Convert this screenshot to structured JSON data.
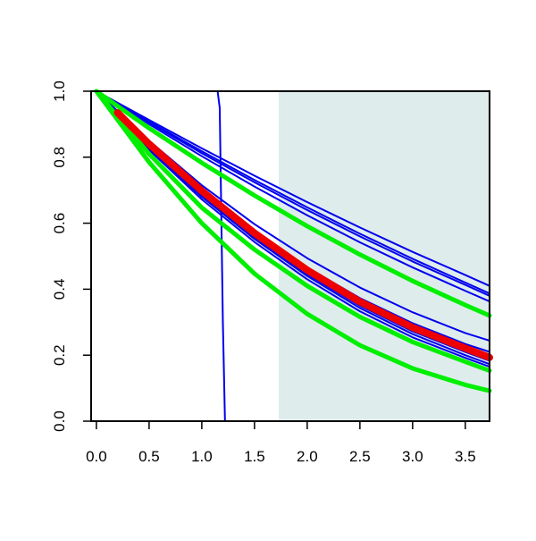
{
  "chart_data": {
    "type": "line",
    "title": "",
    "xlabel": "",
    "ylabel": "",
    "xlim": [
      -0.05,
      3.73
    ],
    "ylim": [
      0.0,
      1.0
    ],
    "x_ticks": [
      "0.0",
      "0.5",
      "1.0",
      "1.5",
      "2.0",
      "2.5",
      "3.0",
      "3.5"
    ],
    "y_ticks": [
      "0.0",
      "0.2",
      "0.4",
      "0.6",
      "0.8",
      "1.0"
    ],
    "grid": false,
    "legend": "none",
    "shaded_region": {
      "x_from": 1.73,
      "x_to": 3.73,
      "color": "#dfecec"
    },
    "series": [
      {
        "color": "#0000ee",
        "width": "thin",
        "x": [
          0,
          1.15,
          1.17,
          1.2,
          1.22,
          3.73
        ],
        "y": [
          1.0,
          1.0,
          0.95,
          0.3,
          0.0,
          0.0
        ]
      },
      {
        "color": "#0000ee",
        "width": "thin",
        "x": [
          0,
          0.5,
          1.0,
          1.5,
          2.0,
          2.5,
          3.0,
          3.5,
          3.73
        ],
        "y": [
          1.0,
          0.913,
          0.827,
          0.744,
          0.664,
          0.587,
          0.513,
          0.443,
          0.41
        ]
      },
      {
        "color": "#0000ee",
        "width": "thin",
        "x": [
          0,
          0.5,
          1.0,
          1.5,
          2.0,
          2.5,
          3.0,
          3.5,
          3.73
        ],
        "y": [
          1.0,
          0.908,
          0.818,
          0.731,
          0.648,
          0.568,
          0.492,
          0.42,
          0.387
        ]
      },
      {
        "color": "#0000ee",
        "width": "thin",
        "x": [
          0,
          0.5,
          1.0,
          1.5,
          2.0,
          2.5,
          3.0,
          3.5,
          3.73
        ],
        "y": [
          1.0,
          0.905,
          0.812,
          0.724,
          0.64,
          0.56,
          0.484,
          0.413,
          0.38
        ]
      },
      {
        "color": "#0000ee",
        "width": "thin",
        "x": [
          0,
          0.5,
          1.0,
          1.5,
          2.0,
          2.5,
          3.0,
          3.5,
          3.73
        ],
        "y": [
          1.0,
          0.9,
          0.803,
          0.711,
          0.624,
          0.542,
          0.466,
          0.395,
          0.363
        ]
      },
      {
        "color": "#0000ee",
        "width": "thin",
        "x": [
          0,
          0.5,
          1.0,
          1.5,
          2.0,
          2.5,
          3.0,
          3.5,
          3.73
        ],
        "y": [
          1.0,
          0.85,
          0.715,
          0.597,
          0.494,
          0.405,
          0.33,
          0.267,
          0.244
        ]
      },
      {
        "color": "#0000ee",
        "width": "thin",
        "x": [
          0,
          0.5,
          1.0,
          1.5,
          2.0,
          2.5,
          3.0,
          3.5,
          3.73
        ],
        "y": [
          1.0,
          0.84,
          0.7,
          0.575,
          0.466,
          0.373,
          0.297,
          0.234,
          0.21
        ]
      },
      {
        "color": "#0000ee",
        "width": "thin",
        "x": [
          0,
          0.5,
          1.0,
          1.5,
          2.0,
          2.5,
          3.0,
          3.5,
          3.73
        ],
        "y": [
          1.0,
          0.835,
          0.692,
          0.565,
          0.455,
          0.36,
          0.284,
          0.222,
          0.197
        ]
      },
      {
        "color": "#0000ee",
        "width": "thin",
        "x": [
          0,
          0.5,
          1.0,
          1.5,
          2.0,
          2.5,
          3.0,
          3.5,
          3.73
        ],
        "y": [
          1.0,
          0.83,
          0.686,
          0.558,
          0.446,
          0.35,
          0.272,
          0.21,
          0.183
        ]
      },
      {
        "color": "#0000ee",
        "width": "thin",
        "x": [
          0,
          0.5,
          1.0,
          1.5,
          2.0,
          2.5,
          3.0,
          3.5,
          3.73
        ],
        "y": [
          1.0,
          0.826,
          0.68,
          0.552,
          0.44,
          0.343,
          0.264,
          0.2,
          0.173
        ]
      },
      {
        "color": "#0000ee",
        "width": "thin",
        "x": [
          0,
          0.5,
          1.0,
          1.5,
          2.0,
          2.5,
          3.0,
          3.5,
          3.73
        ],
        "y": [
          1.0,
          0.822,
          0.672,
          0.543,
          0.43,
          0.333,
          0.254,
          0.192,
          0.165
        ]
      },
      {
        "color": "#00ee00",
        "width": "thick",
        "x": [
          0,
          0.5,
          1.0,
          1.5,
          2.0,
          2.5,
          3.0,
          3.5,
          3.73
        ],
        "y": [
          1.0,
          0.888,
          0.783,
          0.684,
          0.591,
          0.505,
          0.425,
          0.352,
          0.32
        ]
      },
      {
        "color": "#00ee00",
        "width": "thick",
        "x": [
          0,
          0.5,
          1.0,
          1.5,
          2.0,
          2.5,
          3.0,
          3.5,
          3.73
        ],
        "y": [
          1.0,
          0.81,
          0.647,
          0.52,
          0.41,
          0.316,
          0.24,
          0.18,
          0.153
        ]
      },
      {
        "color": "#00ee00",
        "width": "thick",
        "x": [
          0,
          0.5,
          1.0,
          1.5,
          2.0,
          2.5,
          3.0,
          3.5,
          3.73
        ],
        "y": [
          1.0,
          0.785,
          0.6,
          0.447,
          0.325,
          0.23,
          0.16,
          0.11,
          0.092
        ]
      },
      {
        "color": "#ee0000",
        "width": "extra-thick",
        "x": [
          0.2,
          0.5,
          1.0,
          1.5,
          2.0,
          2.5,
          3.0,
          3.5,
          3.73
        ],
        "y": [
          0.935,
          0.84,
          0.698,
          0.57,
          0.458,
          0.362,
          0.284,
          0.221,
          0.193
        ]
      }
    ]
  }
}
